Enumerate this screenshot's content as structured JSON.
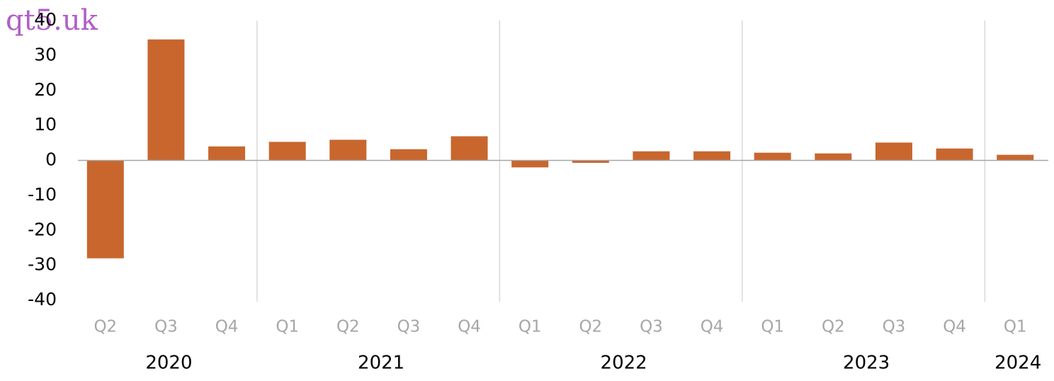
{
  "watermark": "qt5.uk",
  "chart_data": {
    "type": "bar",
    "categories": [
      "Q2",
      "Q3",
      "Q4",
      "Q1",
      "Q2",
      "Q3",
      "Q4",
      "Q1",
      "Q2",
      "Q3",
      "Q4",
      "Q1",
      "Q2",
      "Q3",
      "Q4",
      "Q1"
    ],
    "groups": [
      "2020",
      "2020",
      "2020",
      "2021",
      "2021",
      "2021",
      "2021",
      "2022",
      "2022",
      "2022",
      "2022",
      "2023",
      "2023",
      "2023",
      "2023",
      "2024"
    ],
    "values": [
      -28,
      34.6,
      4.0,
      5.3,
      5.9,
      3.2,
      6.9,
      -2.0,
      -0.7,
      2.6,
      2.6,
      2.2,
      2.0,
      5.1,
      3.4,
      1.6
    ],
    "color": "#c8662e",
    "ylim": [
      -40,
      40
    ],
    "yticks": [
      -40,
      -30,
      -20,
      -10,
      0,
      10,
      20,
      30,
      40
    ]
  }
}
